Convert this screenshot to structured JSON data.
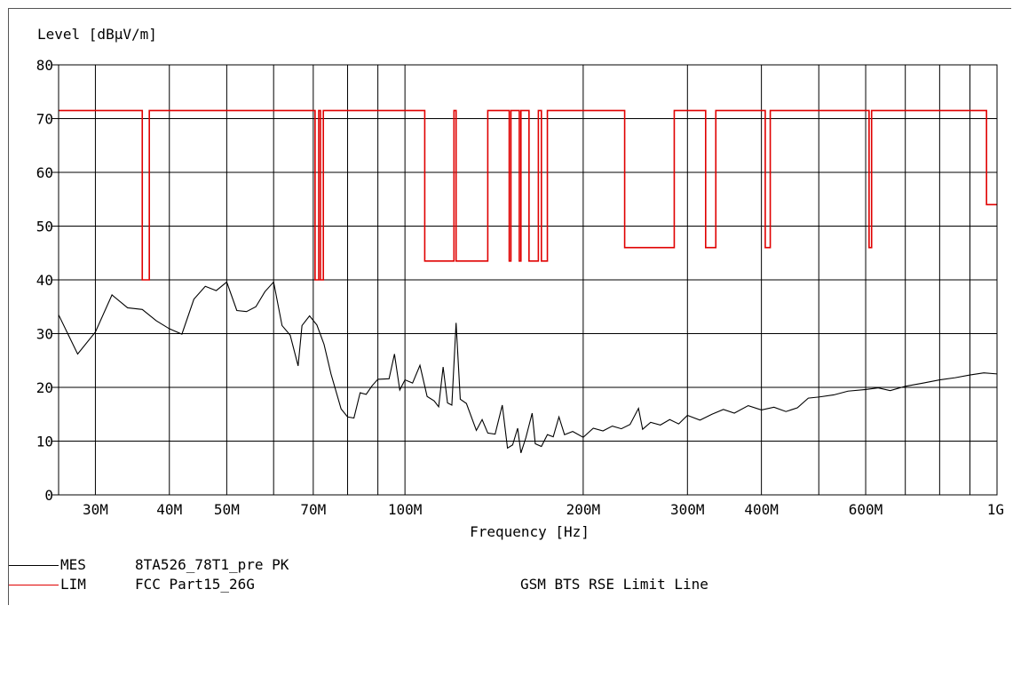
{
  "chart_data": {
    "type": "line",
    "ylabel": "Level [dBµV/m]",
    "xlabel": "Frequency [Hz]",
    "x_scale": "log",
    "xlim": [
      26000000,
      1000000000
    ],
    "ylim": [
      0,
      80
    ],
    "y_ticks": [
      0,
      10,
      20,
      30,
      40,
      50,
      60,
      70,
      80
    ],
    "x_ticks": [
      {
        "value": 30000000,
        "label": "30M"
      },
      {
        "value": 40000000,
        "label": "40M"
      },
      {
        "value": 50000000,
        "label": "50M"
      },
      {
        "value": 70000000,
        "label": "70M"
      },
      {
        "value": 100000000,
        "label": "100M"
      },
      {
        "value": 200000000,
        "label": "200M"
      },
      {
        "value": 300000000,
        "label": "300M"
      },
      {
        "value": 400000000,
        "label": "400M"
      },
      {
        "value": 600000000,
        "label": "600M"
      },
      {
        "value": 1000000000,
        "label": "1G"
      }
    ],
    "x_gridlines": [
      30000000,
      40000000,
      50000000,
      60000000,
      70000000,
      80000000,
      90000000,
      100000000,
      200000000,
      300000000,
      400000000,
      500000000,
      600000000,
      700000000,
      800000000,
      900000000
    ],
    "grid": true,
    "series": [
      {
        "name": "8TA526_78T1_pre PK",
        "key": "MES",
        "color": "#000000",
        "points": [
          [
            26000000,
            33.5
          ],
          [
            28000000,
            26.2
          ],
          [
            30000000,
            30.3
          ],
          [
            32000000,
            37.2
          ],
          [
            34000000,
            34.8
          ],
          [
            36000000,
            34.5
          ],
          [
            38000000,
            32.4
          ],
          [
            40000000,
            30.9
          ],
          [
            42000000,
            29.9
          ],
          [
            44000000,
            36.4
          ],
          [
            46000000,
            38.8
          ],
          [
            48000000,
            38.0
          ],
          [
            50000000,
            39.6
          ],
          [
            52000000,
            34.3
          ],
          [
            54000000,
            34.1
          ],
          [
            56000000,
            35.0
          ],
          [
            58000000,
            37.8
          ],
          [
            60000000,
            39.6
          ],
          [
            62000000,
            31.5
          ],
          [
            64000000,
            29.7
          ],
          [
            66000000,
            24.0
          ],
          [
            67000000,
            31.5
          ],
          [
            69000000,
            33.3
          ],
          [
            71000000,
            31.6
          ],
          [
            73000000,
            28.0
          ],
          [
            75000000,
            22.5
          ],
          [
            78000000,
            16.0
          ],
          [
            80000000,
            14.5
          ],
          [
            82000000,
            14.3
          ],
          [
            84000000,
            19.0
          ],
          [
            86000000,
            18.7
          ],
          [
            88000000,
            20.3
          ],
          [
            90000000,
            21.5
          ],
          [
            94000000,
            21.6
          ],
          [
            96000000,
            26.2
          ],
          [
            98000000,
            19.5
          ],
          [
            100000000,
            21.4
          ],
          [
            103000000,
            20.8
          ],
          [
            106000000,
            24.1
          ],
          [
            109000000,
            18.3
          ],
          [
            112000000,
            17.5
          ],
          [
            114000000,
            16.4
          ],
          [
            116000000,
            23.8
          ],
          [
            118000000,
            17.1
          ],
          [
            120000000,
            16.7
          ],
          [
            122000000,
            32.0
          ],
          [
            124000000,
            17.8
          ],
          [
            127000000,
            17.0
          ],
          [
            132000000,
            12.0
          ],
          [
            135000000,
            14.0
          ],
          [
            138000000,
            11.5
          ],
          [
            142000000,
            11.3
          ],
          [
            146000000,
            16.7
          ],
          [
            149000000,
            8.7
          ],
          [
            152000000,
            9.3
          ],
          [
            155000000,
            12.4
          ],
          [
            157000000,
            7.8
          ],
          [
            160000000,
            10.6
          ],
          [
            164000000,
            15.2
          ],
          [
            166000000,
            9.5
          ],
          [
            170000000,
            9.0
          ],
          [
            174000000,
            11.2
          ],
          [
            178000000,
            10.8
          ],
          [
            182000000,
            14.5
          ],
          [
            186000000,
            11.2
          ],
          [
            192000000,
            11.8
          ],
          [
            200000000,
            10.7
          ],
          [
            208000000,
            12.4
          ],
          [
            216000000,
            11.9
          ],
          [
            224000000,
            12.8
          ],
          [
            232000000,
            12.3
          ],
          [
            240000000,
            13.1
          ],
          [
            248000000,
            16.1
          ],
          [
            252000000,
            12.2
          ],
          [
            260000000,
            13.5
          ],
          [
            270000000,
            13.0
          ],
          [
            280000000,
            14.0
          ],
          [
            290000000,
            13.2
          ],
          [
            300000000,
            14.8
          ],
          [
            315000000,
            13.9
          ],
          [
            330000000,
            15.0
          ],
          [
            345000000,
            15.9
          ],
          [
            360000000,
            15.2
          ],
          [
            380000000,
            16.6
          ],
          [
            400000000,
            15.8
          ],
          [
            420000000,
            16.3
          ],
          [
            440000000,
            15.5
          ],
          [
            460000000,
            16.2
          ],
          [
            480000000,
            18.0
          ],
          [
            500000000,
            18.2
          ],
          [
            530000000,
            18.6
          ],
          [
            560000000,
            19.3
          ],
          [
            600000000,
            19.6
          ],
          [
            630000000,
            19.9
          ],
          [
            660000000,
            19.4
          ],
          [
            700000000,
            20.2
          ],
          [
            750000000,
            20.8
          ],
          [
            800000000,
            21.4
          ],
          [
            850000000,
            21.8
          ],
          [
            900000000,
            22.3
          ],
          [
            950000000,
            22.7
          ],
          [
            1000000000,
            22.5
          ]
        ]
      },
      {
        "name": "FCC Part15_26G",
        "key": "LIM",
        "description": "GSM BTS RSE Limit Line",
        "color": "#e00000",
        "points": [
          [
            26000000,
            71.5
          ],
          [
            36000000,
            71.5
          ],
          [
            36000000,
            40.0
          ],
          [
            37000000,
            40.0
          ],
          [
            37000000,
            71.5
          ],
          [
            70500000,
            71.5
          ],
          [
            70500000,
            40.0
          ],
          [
            71500000,
            40.0
          ],
          [
            71500000,
            71.5
          ],
          [
            72000000,
            71.5
          ],
          [
            72000000,
            40.0
          ],
          [
            72800000,
            40.0
          ],
          [
            72800000,
            71.5
          ],
          [
            108000000,
            71.5
          ],
          [
            108000000,
            43.5
          ],
          [
            121000000,
            43.5
          ],
          [
            121000000,
            71.5
          ],
          [
            122000000,
            71.5
          ],
          [
            122000000,
            43.5
          ],
          [
            138000000,
            43.5
          ],
          [
            138000000,
            71.5
          ],
          [
            150000000,
            71.5
          ],
          [
            150000000,
            43.5
          ],
          [
            151000000,
            43.5
          ],
          [
            151000000,
            71.5
          ],
          [
            156000000,
            71.5
          ],
          [
            156000000,
            43.5
          ],
          [
            157000000,
            43.5
          ],
          [
            157000000,
            71.5
          ],
          [
            162000000,
            71.5
          ],
          [
            162000000,
            43.5
          ],
          [
            168000000,
            43.5
          ],
          [
            168000000,
            71.5
          ],
          [
            170000000,
            71.5
          ],
          [
            170000000,
            43.5
          ],
          [
            174000000,
            43.5
          ],
          [
            174000000,
            71.5
          ],
          [
            235000000,
            71.5
          ],
          [
            235000000,
            46.0
          ],
          [
            285000000,
            46.0
          ],
          [
            285000000,
            71.5
          ],
          [
            322000000,
            71.5
          ],
          [
            322000000,
            46.0
          ],
          [
            335000000,
            46.0
          ],
          [
            335000000,
            71.5
          ],
          [
            406000000,
            71.5
          ],
          [
            406000000,
            46.0
          ],
          [
            414000000,
            46.0
          ],
          [
            414000000,
            71.5
          ],
          [
            608000000,
            71.5
          ],
          [
            608000000,
            46.0
          ],
          [
            614000000,
            46.0
          ],
          [
            614000000,
            71.5
          ],
          [
            960000000,
            71.5
          ],
          [
            960000000,
            54.0
          ],
          [
            1000000000,
            54.0
          ]
        ]
      }
    ]
  }
}
